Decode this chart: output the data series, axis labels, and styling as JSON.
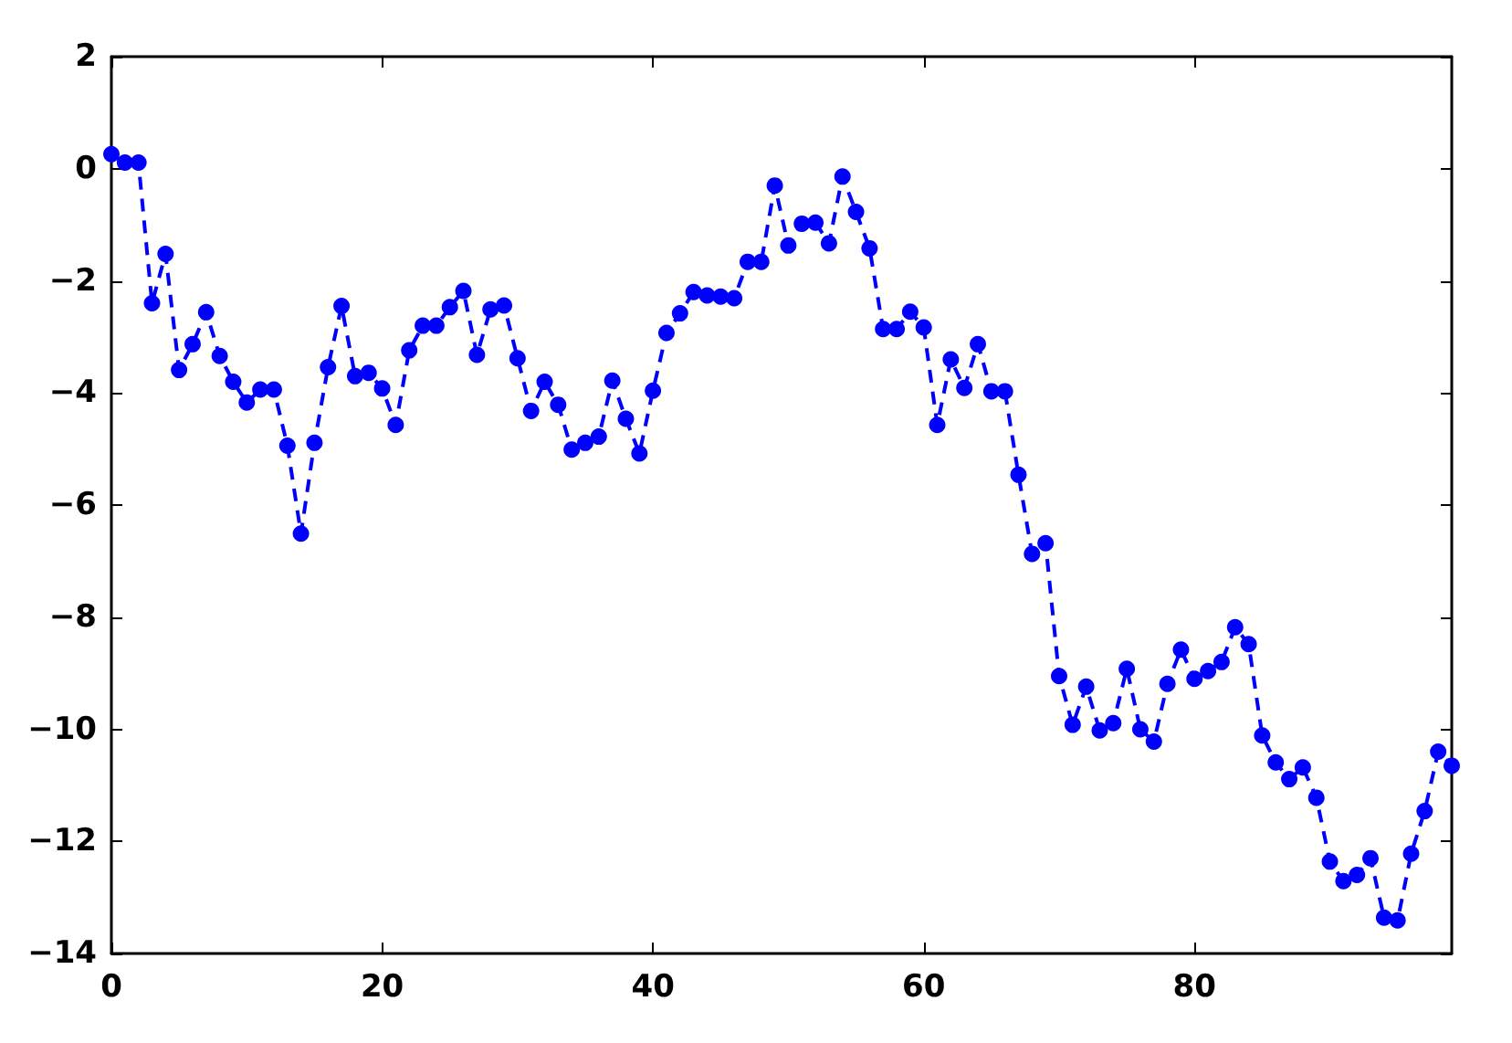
{
  "chart_data": {
    "type": "line",
    "x": [
      0,
      1,
      2,
      3,
      4,
      5,
      6,
      7,
      8,
      9,
      10,
      11,
      12,
      13,
      14,
      15,
      16,
      17,
      18,
      19,
      20,
      21,
      22,
      23,
      24,
      25,
      26,
      27,
      28,
      29,
      30,
      31,
      32,
      33,
      34,
      35,
      36,
      37,
      38,
      39,
      40,
      41,
      42,
      43,
      44,
      45,
      46,
      47,
      48,
      49,
      50,
      51,
      52,
      53,
      54,
      55,
      56,
      57,
      58,
      59,
      60,
      61,
      62,
      63,
      64,
      65,
      66,
      67,
      68,
      69,
      70,
      71,
      72,
      73,
      74,
      75,
      76,
      77,
      78,
      79,
      80,
      81,
      82,
      83,
      84,
      85,
      86,
      87,
      88,
      89,
      90,
      91,
      92,
      93,
      94,
      95,
      96,
      97,
      98,
      99
    ],
    "values": [
      0.26,
      0.11,
      0.11,
      -2.4,
      -1.52,
      -3.59,
      -3.13,
      -2.56,
      -3.34,
      -3.8,
      -4.17,
      -3.94,
      -3.94,
      -4.94,
      -6.51,
      -4.89,
      -3.54,
      -2.45,
      -3.7,
      -3.64,
      -3.92,
      -4.57,
      -3.24,
      -2.8,
      -2.8,
      -2.47,
      -2.18,
      -3.32,
      -2.51,
      -2.44,
      -3.38,
      -4.32,
      -3.8,
      -4.21,
      -5.01,
      -4.89,
      -4.78,
      -3.78,
      -4.46,
      -5.08,
      -3.96,
      -2.93,
      -2.58,
      -2.2,
      -2.26,
      -2.28,
      -2.31,
      -1.66,
      -1.66,
      -0.3,
      -1.37,
      -0.98,
      -0.96,
      -1.33,
      -0.14,
      -0.77,
      -1.42,
      -2.86,
      -2.86,
      -2.55,
      -2.83,
      -4.57,
      -3.4,
      -3.91,
      -3.13,
      -3.97,
      -3.97,
      -5.46,
      -6.87,
      -6.68,
      -9.05,
      -9.92,
      -9.24,
      -10.02,
      -9.89,
      -8.92,
      -10.0,
      -10.22,
      -9.19,
      -8.58,
      -9.1,
      -8.96,
      -8.8,
      -8.18,
      -8.48,
      -10.11,
      -10.59,
      -10.89,
      -10.68,
      -11.22,
      -12.36,
      -12.71,
      -12.6,
      -12.3,
      -13.36,
      -13.41,
      -12.22,
      -11.46,
      -10.4,
      -10.65
    ],
    "color": "#0000ff",
    "xlim": [
      0,
      99
    ],
    "xticks": [
      0,
      20,
      40,
      60,
      80
    ],
    "ylim": [
      -14,
      2
    ],
    "yticks": [
      -14,
      -12,
      -10,
      -8,
      -6,
      -4,
      -2,
      0,
      2
    ],
    "marker": "circle",
    "line_style": "dashed",
    "grid": false
  }
}
